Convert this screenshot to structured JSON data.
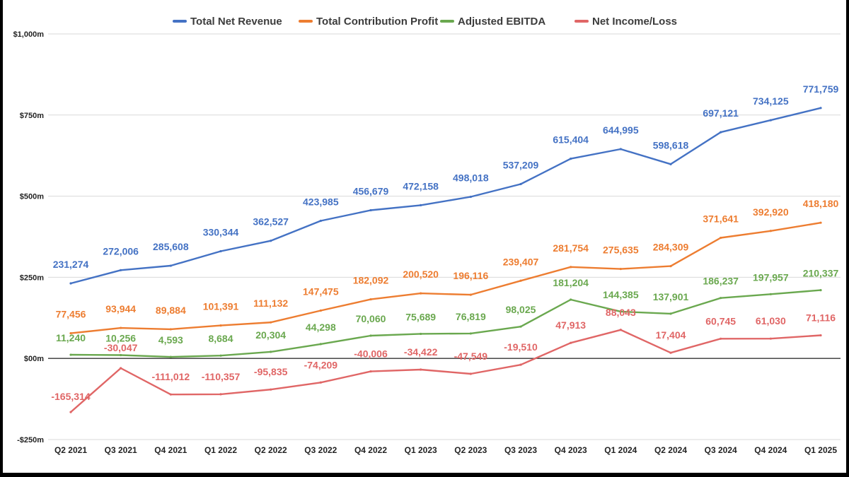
{
  "chart_data": {
    "type": "line",
    "title": "",
    "xlabel": "",
    "ylabel": "",
    "ylim": [
      -250000,
      1000000
    ],
    "grid": true,
    "legend_position": "top",
    "y_ticks": [
      {
        "value": 1000000,
        "label": "$1,000m"
      },
      {
        "value": 750000,
        "label": "$750m"
      },
      {
        "value": 500000,
        "label": "$500m"
      },
      {
        "value": 250000,
        "label": "$250m"
      },
      {
        "value": 0,
        "label": "$00m"
      },
      {
        "value": -250000,
        "label": "-$250m"
      }
    ],
    "categories": [
      "Q2 2021",
      "Q3 2021",
      "Q4 2021",
      "Q1 2022",
      "Q2 2022",
      "Q3 2022",
      "Q4 2022",
      "Q1 2023",
      "Q2 2023",
      "Q3 2023",
      "Q4 2023",
      "Q1 2024",
      "Q2 2024",
      "Q3 2024",
      "Q4 2024",
      "Q1 2025"
    ],
    "series": [
      {
        "name": "Total Net Revenue",
        "color": "#4472c4",
        "values": [
          231274,
          272006,
          285608,
          330344,
          362527,
          423985,
          456679,
          472158,
          498018,
          537209,
          615404,
          644995,
          598618,
          697121,
          734125,
          771759
        ],
        "labels": [
          "231,274",
          "272,006",
          "285,608",
          "330,344",
          "362,527",
          "423,985",
          "456,679",
          "472,158",
          "498,018",
          "537,209",
          "615,404",
          "644,995",
          "598,618",
          "697,121",
          "734,125",
          "771,759"
        ]
      },
      {
        "name": "Total Contribution Profit",
        "color": "#ed7d31",
        "values": [
          77456,
          93944,
          89884,
          101391,
          111132,
          147475,
          182092,
          200520,
          196116,
          239407,
          281754,
          275635,
          284309,
          371641,
          392920,
          418180
        ],
        "labels": [
          "77,456",
          "93,944",
          "89,884",
          "101,391",
          "111,132",
          "147,475",
          "182,092",
          "200,520",
          "196,116",
          "239,407",
          "281,754",
          "275,635",
          "284,309",
          "371,641",
          "392,920",
          "418,180"
        ]
      },
      {
        "name": "Adjusted EBITDA",
        "color": "#6aa84f",
        "values": [
          11240,
          10256,
          4593,
          8684,
          20304,
          44298,
          70060,
          75689,
          76819,
          98025,
          181204,
          144385,
          137901,
          186237,
          197957,
          210337
        ],
        "labels": [
          "11,240",
          "10,256",
          "4,593",
          "8,684",
          "20,304",
          "44,298",
          "70,060",
          "75,689",
          "76,819",
          "98,025",
          "181,204",
          "144,385",
          "137,901",
          "186,237",
          "197,957",
          "210,337"
        ]
      },
      {
        "name": "Net Income/Loss",
        "color": "#e06666",
        "values": [
          -165314,
          -30047,
          -111012,
          -110357,
          -95835,
          -74209,
          -40006,
          -34422,
          -47549,
          -19510,
          47913,
          88043,
          17404,
          60745,
          61030,
          71116
        ],
        "labels": [
          "-165,314",
          "-30,047",
          "-111,012",
          "-110,357",
          "-95,835",
          "-74,209",
          "-40,006",
          "-34,422",
          "-47,549",
          "-19,510",
          "47,913",
          "88,043",
          "17,404",
          "60,745",
          "61,030",
          "71,116"
        ]
      }
    ]
  }
}
